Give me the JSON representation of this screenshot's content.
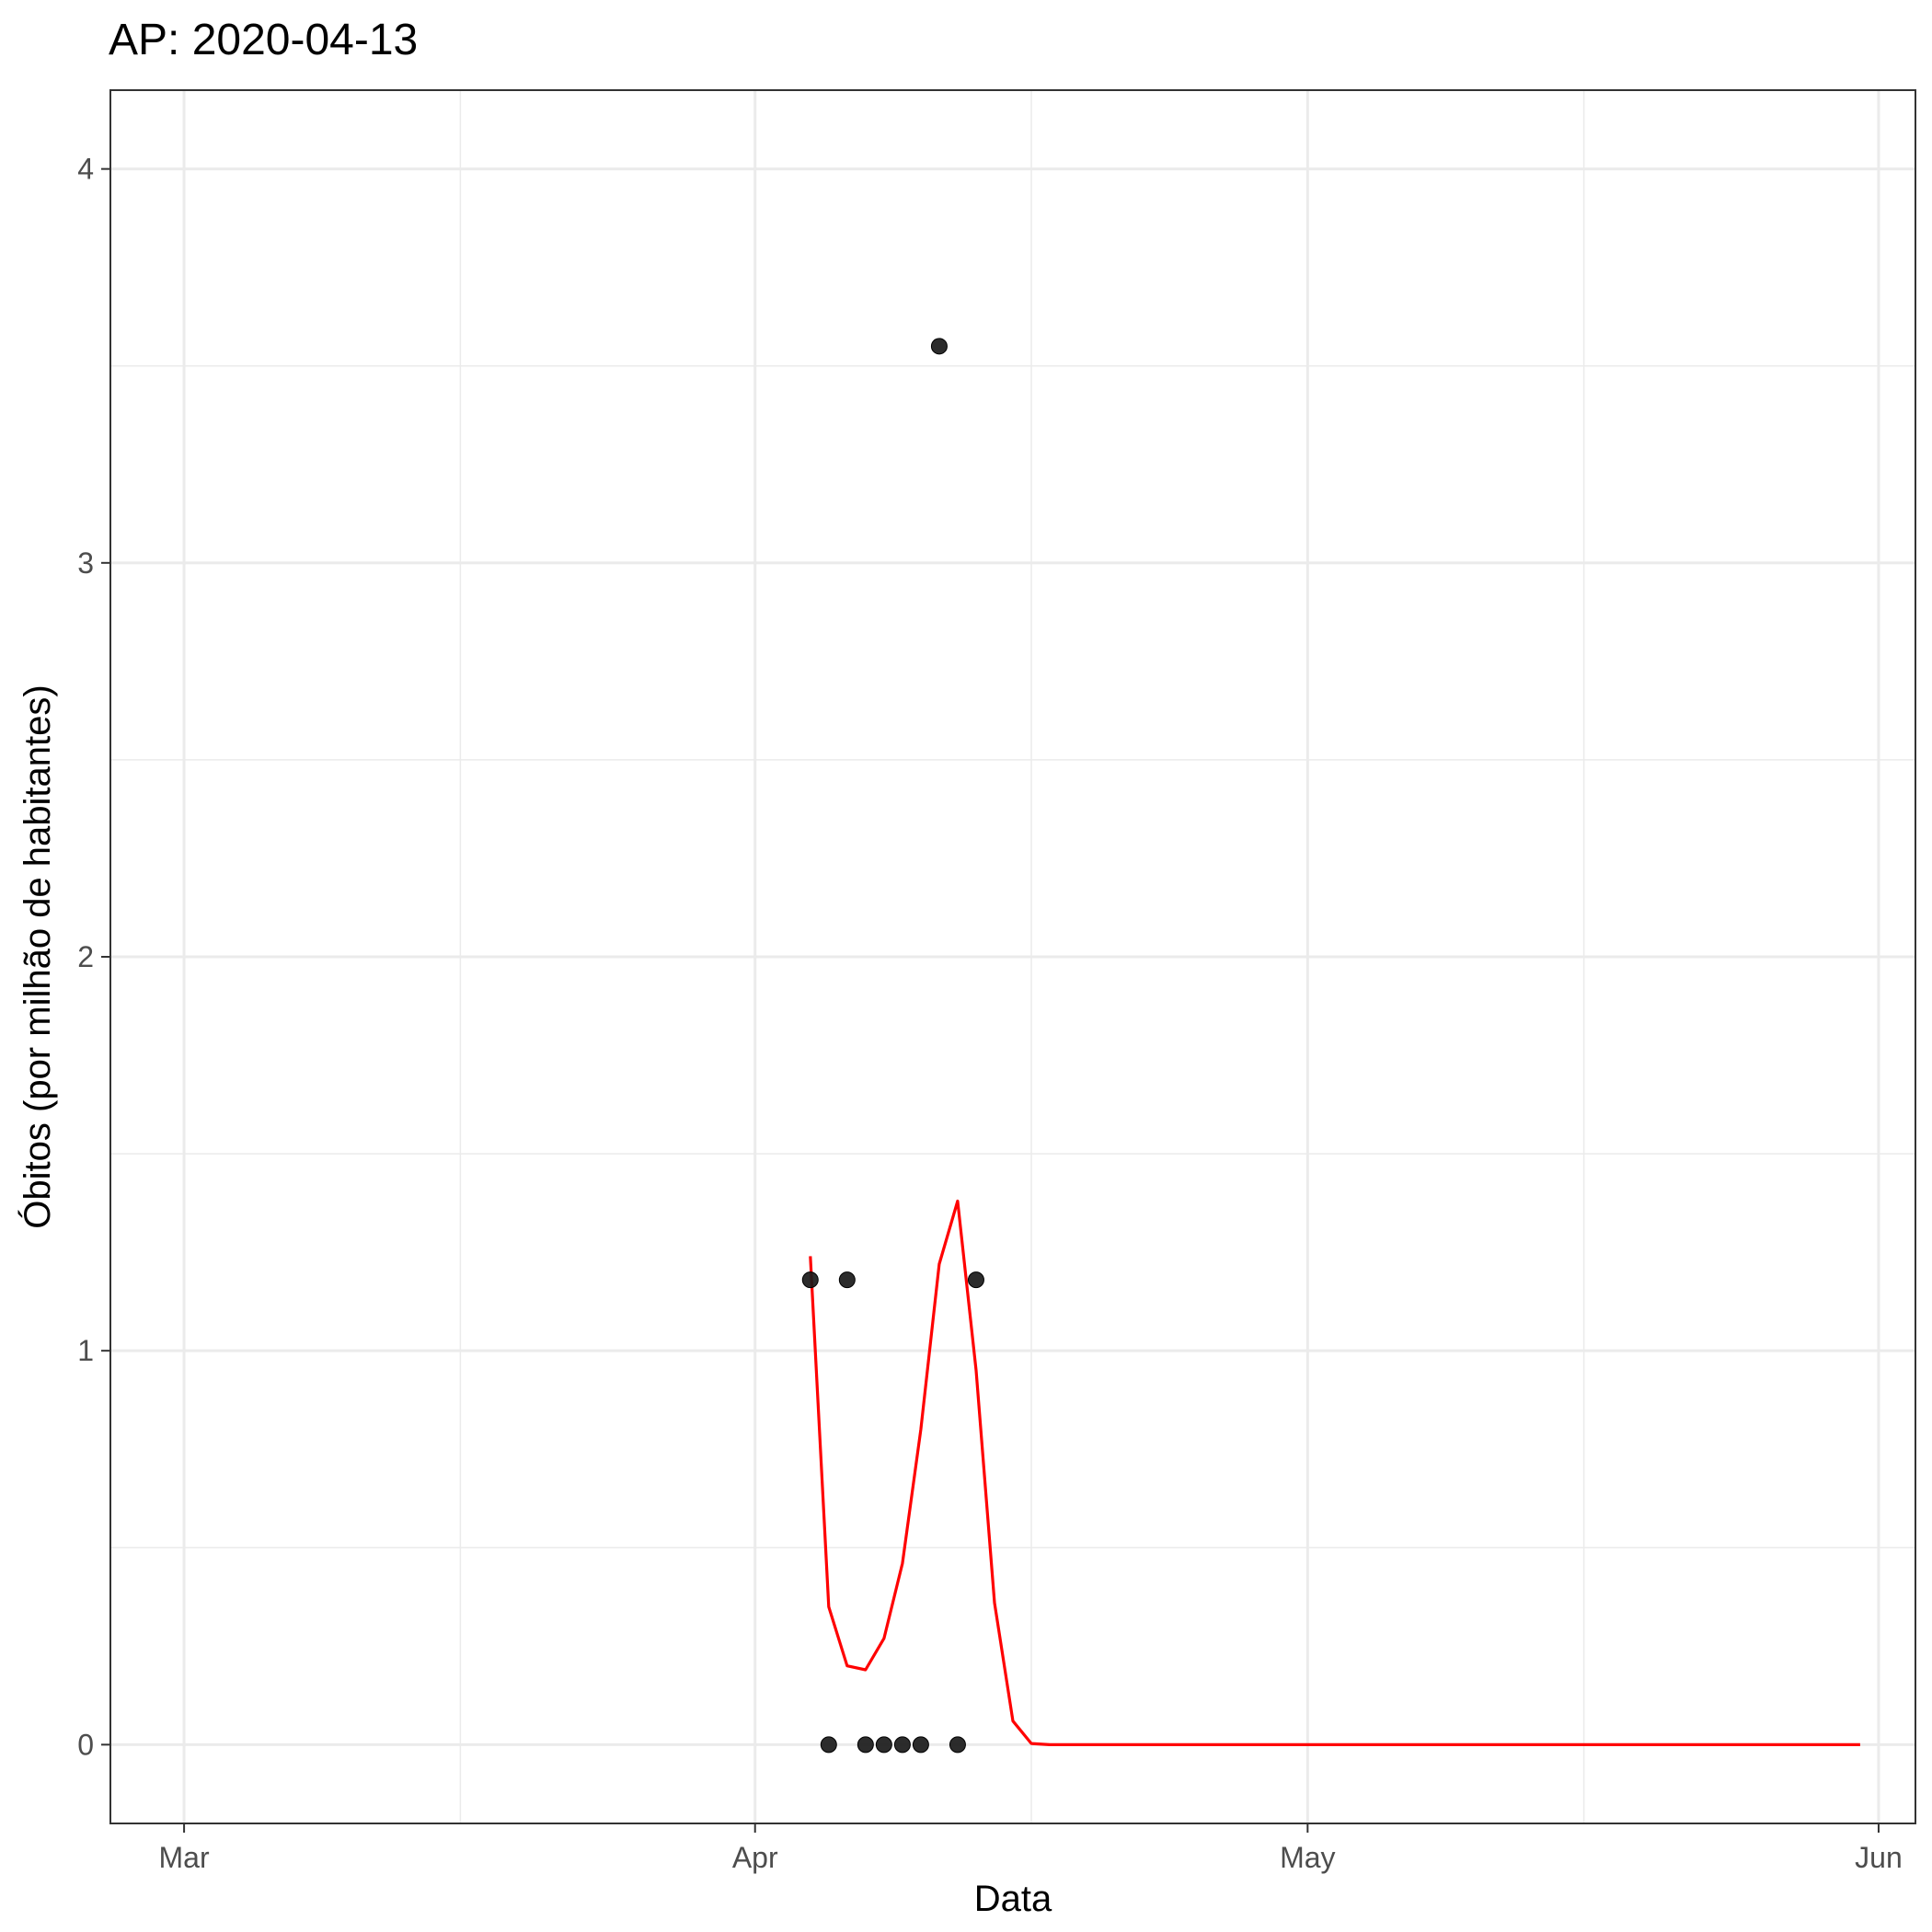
{
  "chart_data": {
    "type": "line",
    "title": "AP: 2020-04-13",
    "xlabel": "Data",
    "ylabel": "Óbitos (por milhão de habitantes)",
    "x_axis": {
      "type": "date",
      "range": [
        "2020-02-26",
        "2020-06-03"
      ],
      "ticks": [
        {
          "date": "2020-03-01",
          "label": "Mar"
        },
        {
          "date": "2020-04-01",
          "label": "Apr"
        },
        {
          "date": "2020-05-01",
          "label": "May"
        },
        {
          "date": "2020-06-01",
          "label": "Jun"
        }
      ],
      "minor_ticks": [
        "2020-03-16",
        "2020-04-16",
        "2020-05-16"
      ]
    },
    "y_axis": {
      "range": [
        -0.2,
        4.2
      ],
      "ticks": [
        0,
        1,
        2,
        3,
        4
      ],
      "minor_ticks": [
        0.5,
        1.5,
        2.5,
        3.5
      ]
    },
    "grid": true,
    "legend": "none",
    "colors": {
      "line": "#ff0000",
      "points": "#1a1a1a",
      "grid": "#ebebeb",
      "panel_border": "#333333"
    },
    "series": [
      {
        "kind": "points",
        "x": [
          "2020-04-04",
          "2020-04-05",
          "2020-04-06",
          "2020-04-07",
          "2020-04-08",
          "2020-04-09",
          "2020-04-10",
          "2020-04-11",
          "2020-04-12",
          "2020-04-13"
        ],
        "y": [
          1.18,
          0,
          1.18,
          0,
          0,
          0,
          0,
          3.55,
          0,
          1.18
        ]
      },
      {
        "kind": "line",
        "x": [
          "2020-04-04",
          "2020-04-05",
          "2020-04-06",
          "2020-04-07",
          "2020-04-08",
          "2020-04-09",
          "2020-04-10",
          "2020-04-11",
          "2020-04-12",
          "2020-04-13",
          "2020-04-14",
          "2020-04-15",
          "2020-04-16",
          "2020-04-17",
          "2020-04-18",
          "2020-05-31"
        ],
        "y": [
          1.24,
          0.35,
          0.2,
          0.19,
          0.27,
          0.46,
          0.8,
          1.22,
          1.38,
          0.95,
          0.36,
          0.06,
          0.003,
          0,
          0,
          0
        ]
      }
    ]
  }
}
